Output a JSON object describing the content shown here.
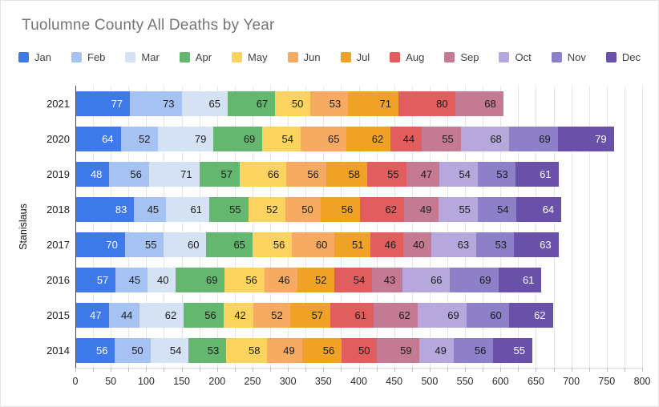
{
  "title": "Tuolumne County All Deaths by Year",
  "y_axis_title": "Stanislaus",
  "chart_data": {
    "type": "bar",
    "orientation": "horizontal",
    "stacked": true,
    "title": "Tuolumne County All Deaths by Year",
    "xlabel": "",
    "ylabel": "Stanislaus",
    "legend_position": "top",
    "grid": true,
    "xlim": [
      0,
      800
    ],
    "x_tick_step": 50,
    "x_grid_step": 25,
    "x_ticks": [
      0,
      50,
      100,
      150,
      200,
      250,
      300,
      350,
      400,
      450,
      500,
      550,
      600,
      650,
      700,
      750,
      800
    ],
    "categories": [
      "2021",
      "2020",
      "2019",
      "2018",
      "2017",
      "2016",
      "2015",
      "2014"
    ],
    "series": [
      {
        "name": "Jan",
        "color": "#3e79e9",
        "label_color": "#ffffff",
        "values": [
          77,
          64,
          48,
          83,
          70,
          57,
          47,
          56
        ]
      },
      {
        "name": "Feb",
        "color": "#a5c2f3",
        "label_color": "#1a1a1a",
        "values": [
          73,
          52,
          56,
          45,
          55,
          45,
          44,
          50
        ]
      },
      {
        "name": "Mar",
        "color": "#d5e2f4",
        "label_color": "#1a1a1a",
        "values": [
          65,
          79,
          71,
          61,
          60,
          40,
          62,
          54
        ]
      },
      {
        "name": "Apr",
        "color": "#63b76e",
        "label_color": "#1a1a1a",
        "values": [
          67,
          69,
          57,
          55,
          65,
          69,
          56,
          53
        ]
      },
      {
        "name": "May",
        "color": "#fbd35e",
        "label_color": "#1a1a1a",
        "values": [
          50,
          54,
          66,
          52,
          56,
          56,
          42,
          58
        ]
      },
      {
        "name": "Jun",
        "color": "#f6aa62",
        "label_color": "#1a1a1a",
        "values": [
          53,
          65,
          56,
          50,
          60,
          46,
          52,
          49
        ]
      },
      {
        "name": "Jul",
        "color": "#efa226",
        "label_color": "#1a1a1a",
        "values": [
          71,
          62,
          58,
          56,
          51,
          52,
          57,
          56
        ]
      },
      {
        "name": "Aug",
        "color": "#e25e5e",
        "label_color": "#1a1a1a",
        "values": [
          80,
          44,
          55,
          62,
          46,
          54,
          61,
          50
        ]
      },
      {
        "name": "Sep",
        "color": "#c47a92",
        "label_color": "#1a1a1a",
        "values": [
          68,
          55,
          47,
          49,
          40,
          43,
          62,
          59
        ]
      },
      {
        "name": "Oct",
        "color": "#b6a8dc",
        "label_color": "#1a1a1a",
        "values": [
          null,
          68,
          54,
          55,
          63,
          66,
          69,
          49
        ]
      },
      {
        "name": "Nov",
        "color": "#8d80c8",
        "label_color": "#1a1a1a",
        "values": [
          null,
          69,
          53,
          54,
          53,
          69,
          60,
          56
        ]
      },
      {
        "name": "Dec",
        "color": "#6950a8",
        "label_color": "#ffffff",
        "values": [
          null,
          79,
          61,
          64,
          63,
          61,
          62,
          55
        ]
      }
    ]
  }
}
